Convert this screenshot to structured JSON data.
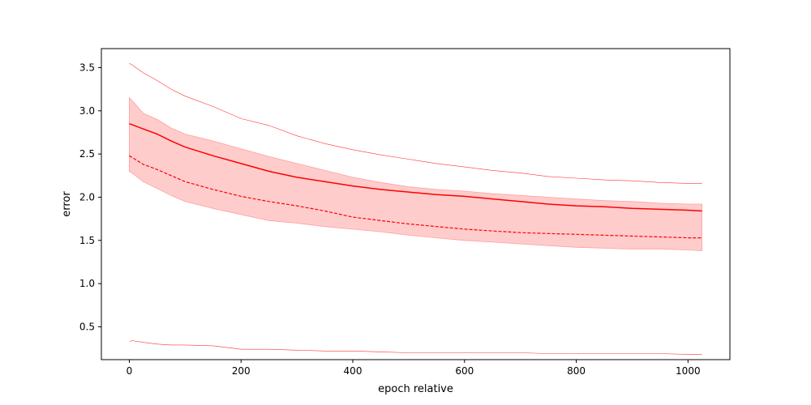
{
  "chart_data": {
    "type": "line",
    "xlabel": "epoch relative",
    "ylabel": "error",
    "xlim": [
      -50,
      1075
    ],
    "ylim": [
      0.12,
      3.72
    ],
    "x_ticks": [
      0,
      200,
      400,
      600,
      800,
      1000
    ],
    "y_ticks": [
      0.5,
      1.0,
      1.5,
      2.0,
      2.5,
      3.0,
      3.5
    ],
    "x_tick_labels": [
      "0",
      "200",
      "400",
      "600",
      "800",
      "1000"
    ],
    "y_tick_labels": [
      "0.5",
      "1.0",
      "1.5",
      "2.0",
      "2.5",
      "3.0",
      "3.5"
    ],
    "grid": false,
    "color": "#ff0000",
    "band_color": "#ffcccc",
    "x": [
      0,
      5,
      25,
      50,
      75,
      100,
      150,
      200,
      250,
      300,
      350,
      400,
      450,
      500,
      550,
      600,
      650,
      700,
      750,
      800,
      850,
      900,
      950,
      1000,
      1025
    ],
    "series": [
      {
        "style": "solid",
        "values": [
          2.85,
          2.84,
          2.79,
          2.73,
          2.65,
          2.58,
          2.48,
          2.39,
          2.3,
          2.23,
          2.18,
          2.13,
          2.09,
          2.06,
          2.03,
          2.01,
          1.98,
          1.95,
          1.92,
          1.9,
          1.89,
          1.87,
          1.86,
          1.85,
          1.84
        ]
      },
      {
        "style": "dashed",
        "values": [
          2.48,
          2.46,
          2.38,
          2.32,
          2.25,
          2.18,
          2.09,
          2.01,
          1.95,
          1.9,
          1.84,
          1.77,
          1.73,
          1.69,
          1.66,
          1.63,
          1.61,
          1.59,
          1.58,
          1.57,
          1.56,
          1.55,
          1.54,
          1.53,
          1.53
        ]
      },
      {
        "style": "thin-upper",
        "values": [
          3.55,
          3.53,
          3.44,
          3.35,
          3.25,
          3.17,
          3.05,
          2.91,
          2.83,
          2.71,
          2.62,
          2.55,
          2.49,
          2.44,
          2.39,
          2.35,
          2.31,
          2.28,
          2.24,
          2.22,
          2.2,
          2.19,
          2.17,
          2.16,
          2.16
        ]
      },
      {
        "style": "thin-lower",
        "values": [
          0.33,
          0.34,
          0.32,
          0.3,
          0.29,
          0.29,
          0.28,
          0.24,
          0.24,
          0.23,
          0.22,
          0.22,
          0.21,
          0.2,
          0.2,
          0.2,
          0.2,
          0.2,
          0.19,
          0.19,
          0.19,
          0.19,
          0.19,
          0.18,
          0.18
        ]
      }
    ],
    "band": {
      "upper": [
        3.15,
        3.12,
        2.97,
        2.9,
        2.8,
        2.73,
        2.65,
        2.56,
        2.47,
        2.39,
        2.31,
        2.23,
        2.17,
        2.12,
        2.09,
        2.07,
        2.04,
        2.02,
        2.0,
        1.98,
        1.96,
        1.95,
        1.93,
        1.92,
        1.92
      ],
      "lower": [
        2.3,
        2.28,
        2.18,
        2.1,
        2.02,
        1.95,
        1.87,
        1.8,
        1.73,
        1.7,
        1.66,
        1.63,
        1.6,
        1.56,
        1.53,
        1.5,
        1.48,
        1.46,
        1.44,
        1.42,
        1.41,
        1.4,
        1.4,
        1.39,
        1.38
      ]
    }
  }
}
